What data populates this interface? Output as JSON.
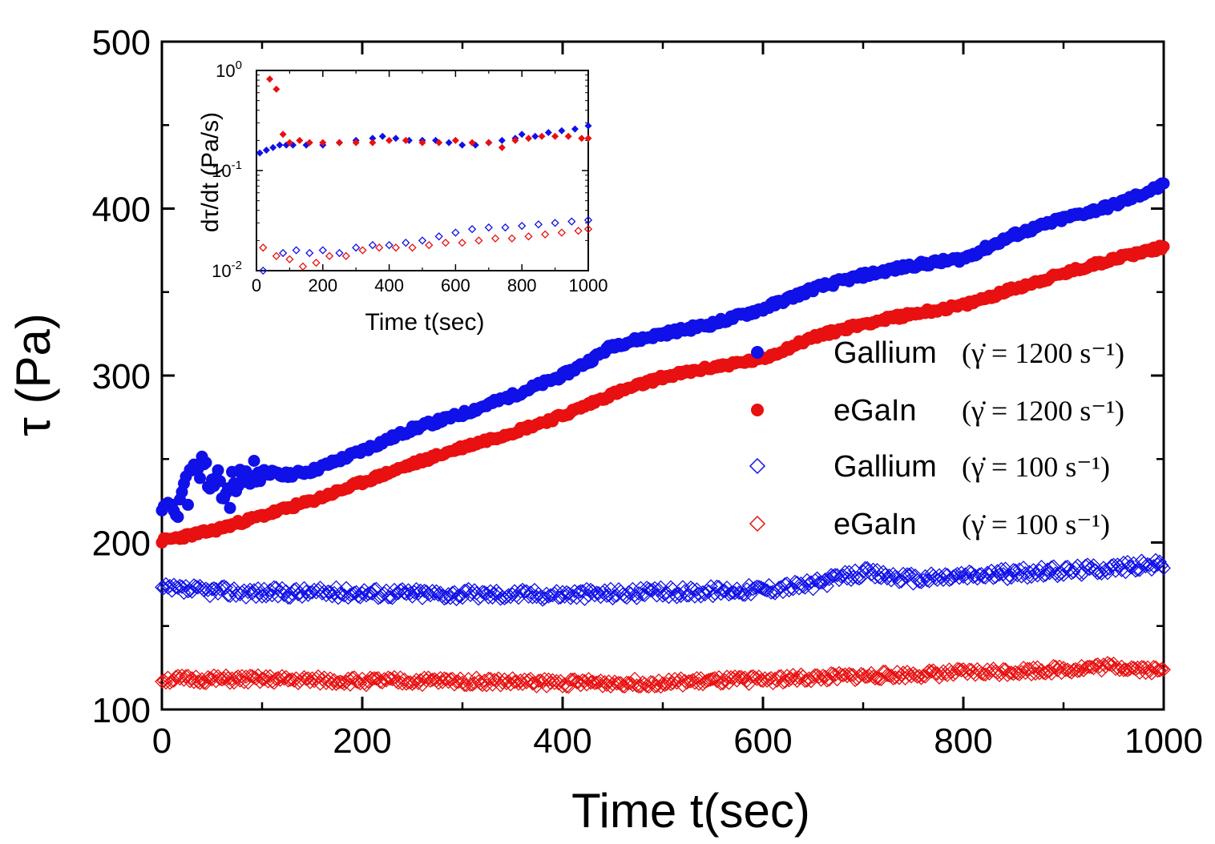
{
  "chart_data": [
    {
      "type": "scatter",
      "title": "",
      "xlabel": "Time t(sec)",
      "ylabel": "τ (Pa)",
      "xlim": [
        0,
        1000
      ],
      "ylim": [
        100,
        500
      ],
      "xticks": [
        "0",
        "200",
        "400",
        "600",
        "800",
        "1000"
      ],
      "yticks": [
        "100",
        "200",
        "300",
        "400",
        "500"
      ],
      "legend_position": "right",
      "series": [
        {
          "name": "Gallium",
          "formula": "(γ̇ = 1200 s⁻¹)",
          "marker": "filled-circle",
          "color": "#1010e8",
          "x": [
            0,
            20,
            40,
            60,
            80,
            100,
            120,
            150,
            200,
            250,
            300,
            350,
            400,
            430,
            450,
            500,
            550,
            600,
            650,
            700,
            750,
            800,
            850,
            900,
            950,
            1000
          ],
          "y": [
            220,
            228,
            245,
            230,
            232,
            243,
            240,
            243,
            255,
            268,
            277,
            288,
            300,
            310,
            318,
            325,
            331,
            340,
            352,
            360,
            366,
            370,
            384,
            394,
            402,
            414
          ]
        },
        {
          "name": "eGaIn",
          "formula": "(γ̇ = 1200 s⁻¹)",
          "marker": "filled-circle",
          "color": "#e81010",
          "x": [
            0,
            50,
            100,
            150,
            200,
            250,
            300,
            350,
            400,
            450,
            500,
            550,
            600,
            650,
            700,
            750,
            800,
            850,
            900,
            950,
            1000
          ],
          "y": [
            201,
            207,
            216,
            225,
            236,
            247,
            257,
            266,
            276,
            289,
            299,
            305,
            310,
            323,
            331,
            337,
            342,
            352,
            361,
            370,
            377
          ]
        },
        {
          "name": "Gallium",
          "formula": "(γ̇ = 100 s⁻¹)",
          "marker": "open-diamond",
          "color": "#1010e8",
          "x": [
            0,
            100,
            200,
            300,
            400,
            500,
            600,
            650,
            700,
            750,
            800,
            900,
            1000
          ],
          "y": [
            172,
            170,
            170,
            169,
            169,
            170,
            172,
            175,
            182,
            178,
            180,
            183,
            187
          ]
        },
        {
          "name": "eGaIn",
          "formula": "(γ̇ = 100 s⁻¹)",
          "marker": "open-diamond",
          "color": "#e81010",
          "x": [
            0,
            100,
            200,
            300,
            400,
            500,
            600,
            700,
            800,
            900,
            950,
            1000
          ],
          "y": [
            118,
            118,
            117,
            117,
            116,
            116,
            118,
            120,
            122,
            124,
            126,
            123
          ]
        }
      ]
    },
    {
      "type": "scatter",
      "title": "",
      "xlabel": "Time t(sec)",
      "ylabel": "dτ/dt (Pa/s)",
      "yscale": "log",
      "xlim": [
        0,
        1000
      ],
      "ylim": [
        0.01,
        1
      ],
      "xticks": [
        "0",
        "200",
        "400",
        "600",
        "800",
        "1000"
      ],
      "yticks": [
        {
          "base": "10",
          "exp": "-2"
        },
        {
          "base": "10",
          "exp": "-1"
        },
        {
          "base": "10",
          "exp": "0"
        }
      ],
      "series": [
        {
          "name": "Gallium 1200",
          "marker": "filled-diamond",
          "color": "#1010e8",
          "x": [
            10,
            30,
            50,
            70,
            90,
            110,
            150,
            200,
            250,
            300,
            350,
            380,
            420,
            460,
            500,
            540,
            580,
            620,
            660,
            700,
            740,
            780,
            800,
            840,
            880,
            920,
            960,
            1000
          ],
          "y": [
            0.15,
            0.16,
            0.17,
            0.18,
            0.18,
            0.18,
            0.18,
            0.18,
            0.19,
            0.2,
            0.21,
            0.22,
            0.21,
            0.2,
            0.2,
            0.2,
            0.19,
            0.18,
            0.18,
            0.19,
            0.2,
            0.21,
            0.23,
            0.22,
            0.24,
            0.25,
            0.26,
            0.28
          ]
        },
        {
          "name": "eGaIn 1200",
          "marker": "filled-diamond",
          "color": "#e81010",
          "x": [
            40,
            60,
            80,
            100,
            130,
            160,
            200,
            250,
            300,
            350,
            400,
            450,
            500,
            550,
            600,
            650,
            700,
            740,
            780,
            820,
            860,
            900,
            940,
            980,
            1000
          ],
          "y": [
            0.82,
            0.65,
            0.23,
            0.19,
            0.2,
            0.19,
            0.19,
            0.19,
            0.19,
            0.19,
            0.2,
            0.2,
            0.19,
            0.19,
            0.2,
            0.19,
            0.19,
            0.17,
            0.2,
            0.21,
            0.22,
            0.22,
            0.22,
            0.21,
            0.21
          ]
        },
        {
          "name": "Gallium 100",
          "marker": "open-diamond",
          "color": "#1010e8",
          "x": [
            20,
            80,
            120,
            160,
            200,
            250,
            300,
            350,
            400,
            450,
            500,
            550,
            600,
            650,
            700,
            750,
            800,
            850,
            900,
            950,
            1000
          ],
          "y": [
            0.01,
            0.015,
            0.016,
            0.015,
            0.016,
            0.015,
            0.017,
            0.018,
            0.018,
            0.019,
            0.02,
            0.022,
            0.024,
            0.026,
            0.027,
            0.027,
            0.028,
            0.029,
            0.03,
            0.031,
            0.032
          ]
        },
        {
          "name": "eGaIn 100",
          "marker": "open-diamond",
          "color": "#e81010",
          "x": [
            20,
            60,
            100,
            140,
            180,
            220,
            270,
            320,
            370,
            420,
            470,
            520,
            570,
            620,
            670,
            720,
            770,
            820,
            870,
            920,
            970,
            1000
          ],
          "y": [
            0.017,
            0.014,
            0.013,
            0.011,
            0.012,
            0.014,
            0.014,
            0.016,
            0.017,
            0.017,
            0.017,
            0.018,
            0.019,
            0.019,
            0.02,
            0.021,
            0.021,
            0.022,
            0.023,
            0.024,
            0.025,
            0.026
          ]
        }
      ]
    }
  ]
}
